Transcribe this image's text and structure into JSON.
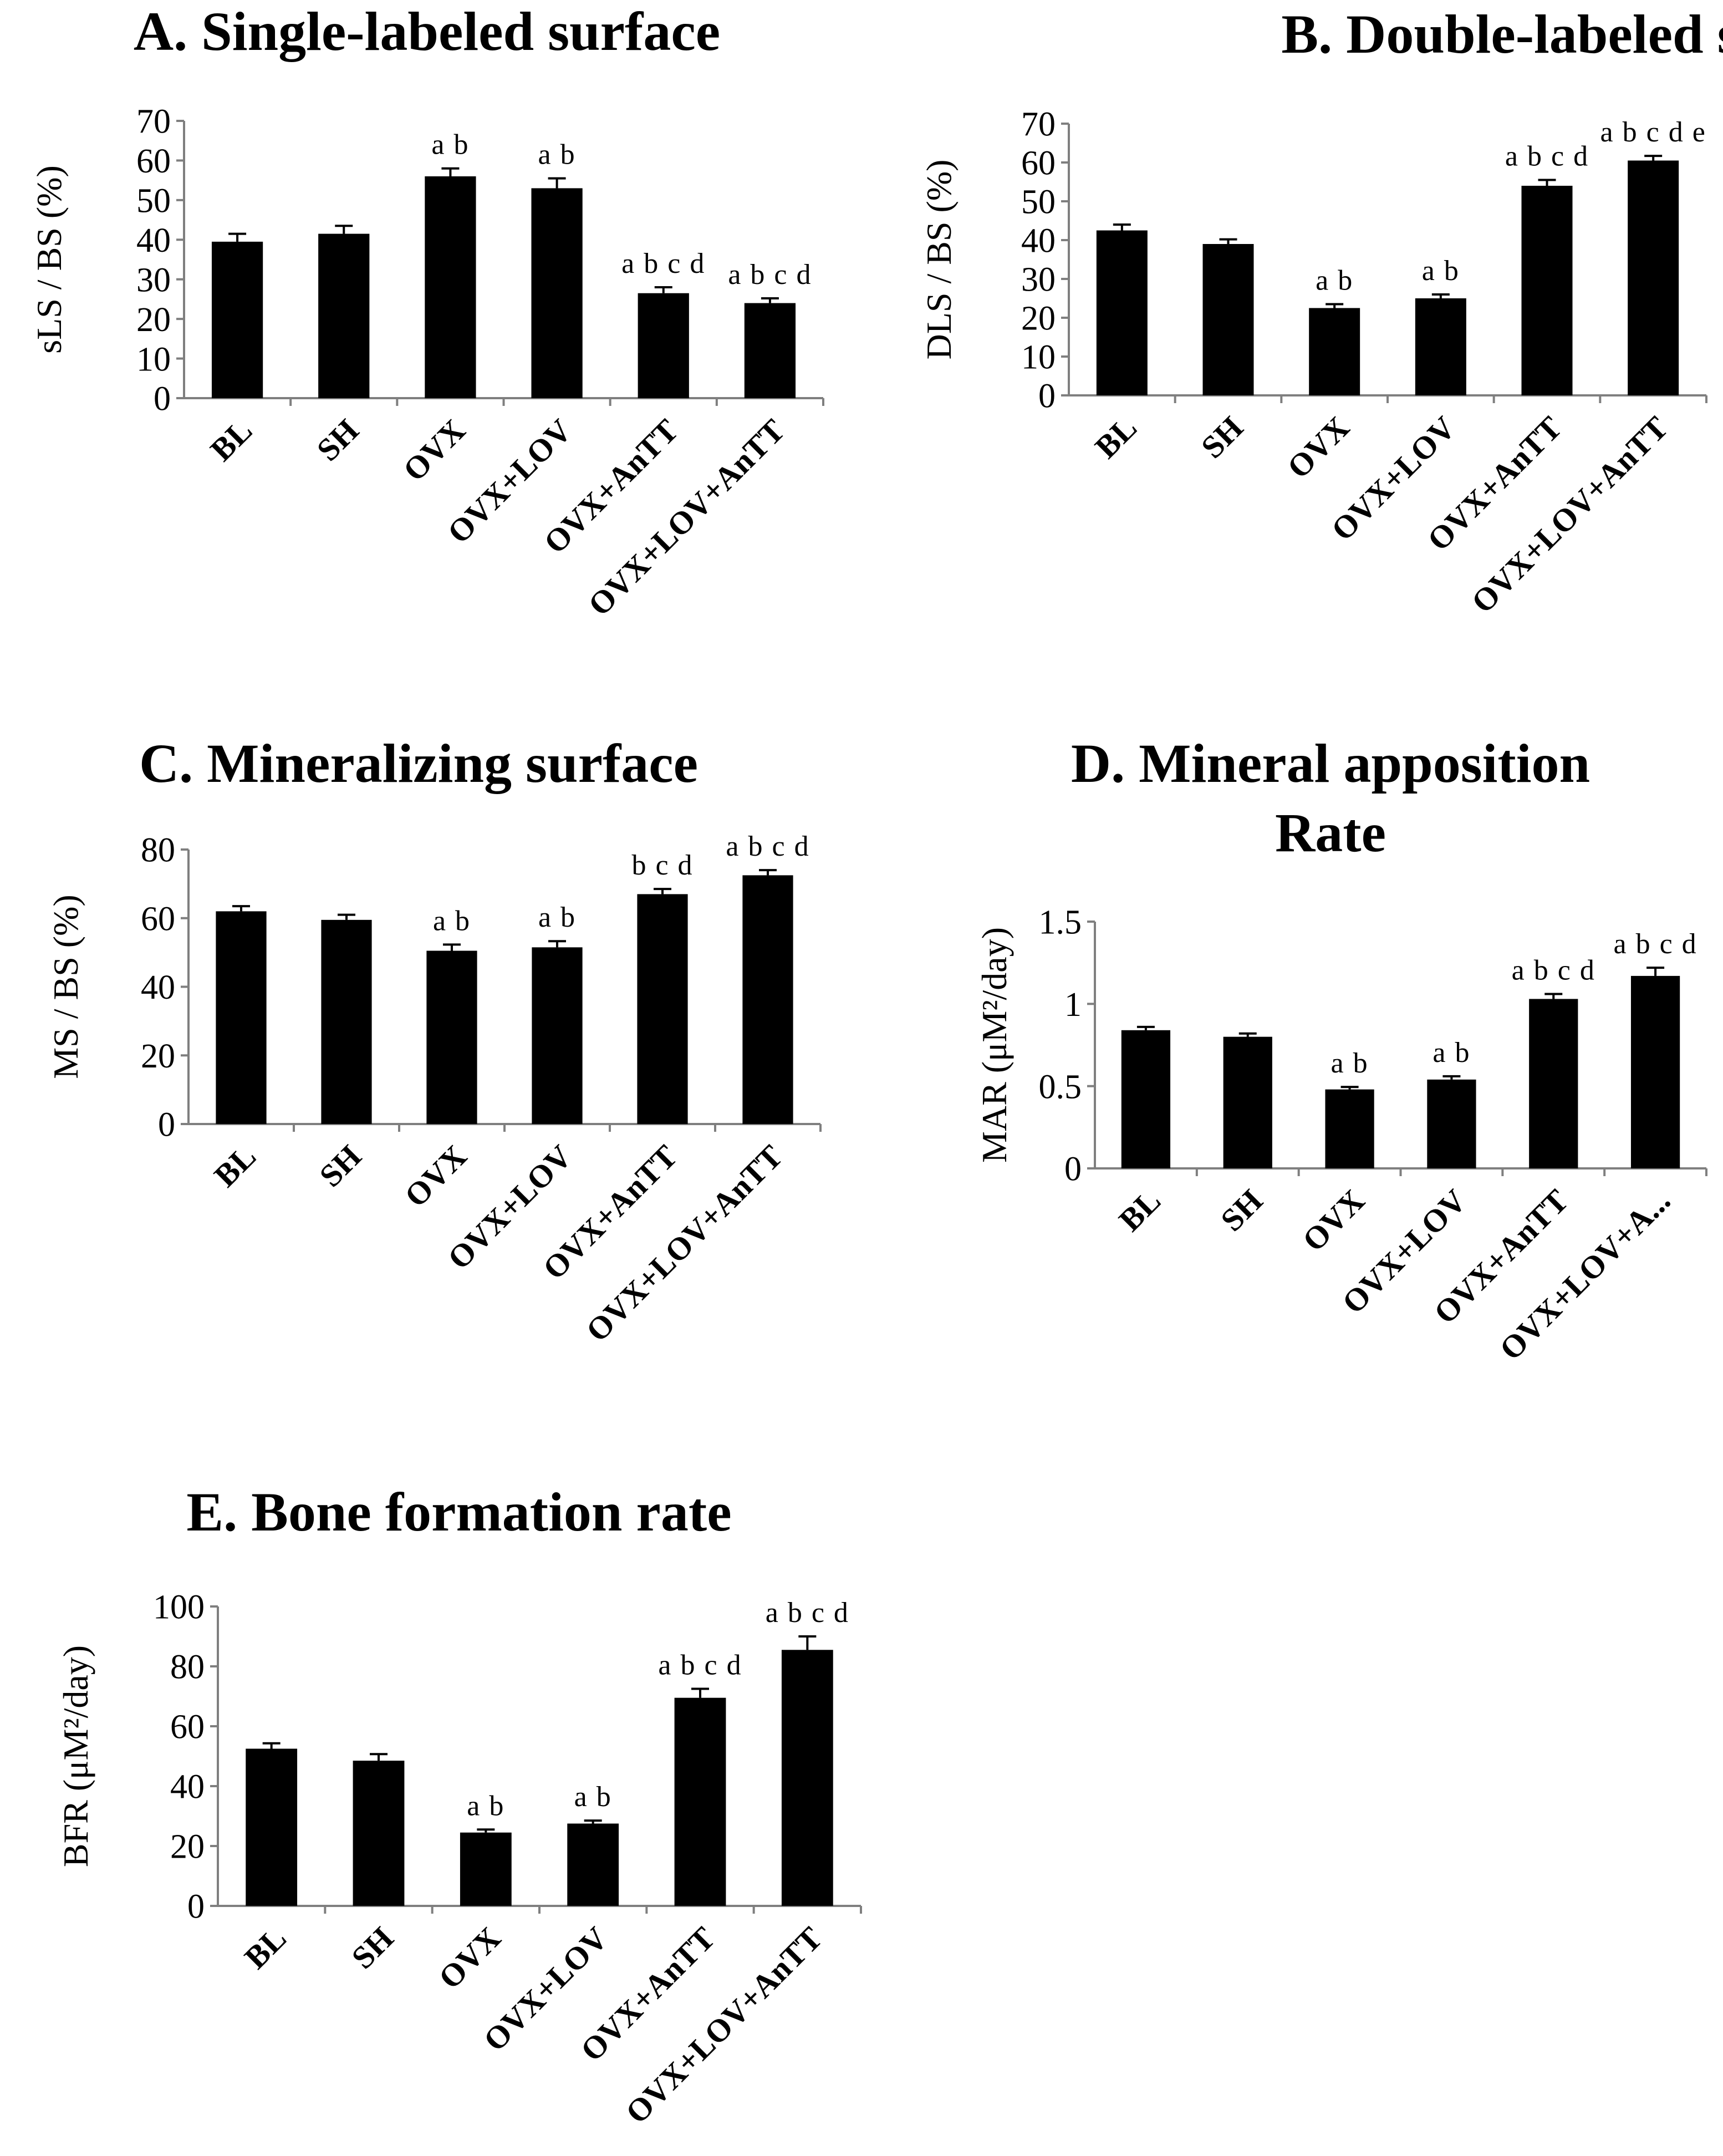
{
  "figure": {
    "colors": {
      "bar": "#000000",
      "axis": "#7f7f7f",
      "text": "#000000",
      "background": "#ffffff"
    }
  },
  "chart_data": [
    {
      "id": "A",
      "type": "bar",
      "title": "A. Single-labeled surface",
      "ylabel": "sLS / BS (%)",
      "xlabel": "",
      "ylim": [
        0,
        70
      ],
      "yticks": [
        0,
        10,
        20,
        30,
        40,
        50,
        60,
        70
      ],
      "ytick_labels": [
        "0",
        "10",
        "20",
        "30",
        "40",
        "50",
        "60",
        "70"
      ],
      "categories": [
        "BL",
        "SH",
        "OVX",
        "OVX+LOV",
        "OVX+AnTT",
        "OVX+LOV+AnTT"
      ],
      "values": [
        39.5,
        41.5,
        56,
        53,
        26.5,
        24
      ],
      "errors": [
        2,
        2,
        2,
        2.5,
        1.5,
        1.2
      ],
      "annotations": [
        "",
        "",
        "a b",
        "a b",
        "a b c d",
        "a b c d"
      ],
      "grid": false
    },
    {
      "id": "B",
      "type": "bar",
      "title": "B. Double-labeled surface",
      "ylabel": "DLS / BS (%)",
      "xlabel": "",
      "ylim": [
        0,
        70
      ],
      "yticks": [
        0,
        10,
        20,
        30,
        40,
        50,
        60,
        70
      ],
      "ytick_labels": [
        "0",
        "10",
        "20",
        "30",
        "40",
        "50",
        "60",
        "70"
      ],
      "categories": [
        "BL",
        "SH",
        "OVX",
        "OVX+LOV",
        "OVX+AnTT",
        "OVX+LOV+AnTT"
      ],
      "values": [
        42.5,
        39,
        22.5,
        25,
        54,
        60.5
      ],
      "errors": [
        1.5,
        1.2,
        1,
        1,
        1.5,
        1.2
      ],
      "annotations": [
        "",
        "",
        "a b",
        "a b",
        "a b c d",
        "a b c d e"
      ],
      "grid": false
    },
    {
      "id": "C",
      "type": "bar",
      "title": "C. Mineralizing surface",
      "ylabel": "MS / BS (%)",
      "xlabel": "",
      "ylim": [
        0,
        80
      ],
      "yticks": [
        0,
        20,
        40,
        60,
        80
      ],
      "ytick_labels": [
        "0",
        "20",
        "40",
        "60",
        "80"
      ],
      "categories": [
        "BL",
        "SH",
        "OVX",
        "OVX+LOV",
        "OVX+AnTT",
        "OVX+LOV+AnTT"
      ],
      "values": [
        62,
        59.5,
        50.5,
        51.5,
        67,
        72.5
      ],
      "errors": [
        1.5,
        1.5,
        1.8,
        1.8,
        1.5,
        1.5
      ],
      "annotations": [
        "",
        "",
        "a b",
        "a b",
        "b c d",
        "a b c d"
      ],
      "grid": false
    },
    {
      "id": "D",
      "type": "bar",
      "title": "D. Mineral apposition Rate",
      "title_lines": [
        "D. Mineral apposition",
        "Rate"
      ],
      "ylabel": "MAR (μM²/day)",
      "xlabel": "",
      "ylim": [
        0,
        1.5
      ],
      "yticks": [
        0,
        0.5,
        1,
        1.5
      ],
      "ytick_labels": [
        "0",
        "0.5",
        "1",
        "1.5"
      ],
      "categories": [
        "BL",
        "SH",
        "OVX",
        "OVX+LOV",
        "OVX+AnTT",
        "OVX+LOV+A..."
      ],
      "values": [
        0.84,
        0.8,
        0.48,
        0.54,
        1.03,
        1.17
      ],
      "errors": [
        0.02,
        0.02,
        0.015,
        0.02,
        0.03,
        0.05
      ],
      "annotations": [
        "",
        "",
        "a b",
        "a b",
        "a b c d",
        "a b c d"
      ],
      "grid": false
    },
    {
      "id": "E",
      "type": "bar",
      "title": "E. Bone formation rate",
      "ylabel": "BFR (μM²/day)",
      "xlabel": "",
      "ylim": [
        0,
        100
      ],
      "yticks": [
        0,
        20,
        40,
        60,
        80,
        100
      ],
      "ytick_labels": [
        "0",
        "20",
        "40",
        "60",
        "80",
        "100"
      ],
      "categories": [
        "BL",
        "SH",
        "OVX",
        "OVX+LOV",
        "OVX+AnTT",
        "OVX+LOV+AnTT"
      ],
      "values": [
        52.5,
        48.5,
        24.5,
        27.5,
        69.5,
        85.5
      ],
      "errors": [
        1.8,
        2.2,
        1,
        1,
        3,
        4.5
      ],
      "annotations": [
        "",
        "",
        "a b",
        "a b",
        "a b c d",
        "a b c d"
      ],
      "grid": false
    }
  ]
}
